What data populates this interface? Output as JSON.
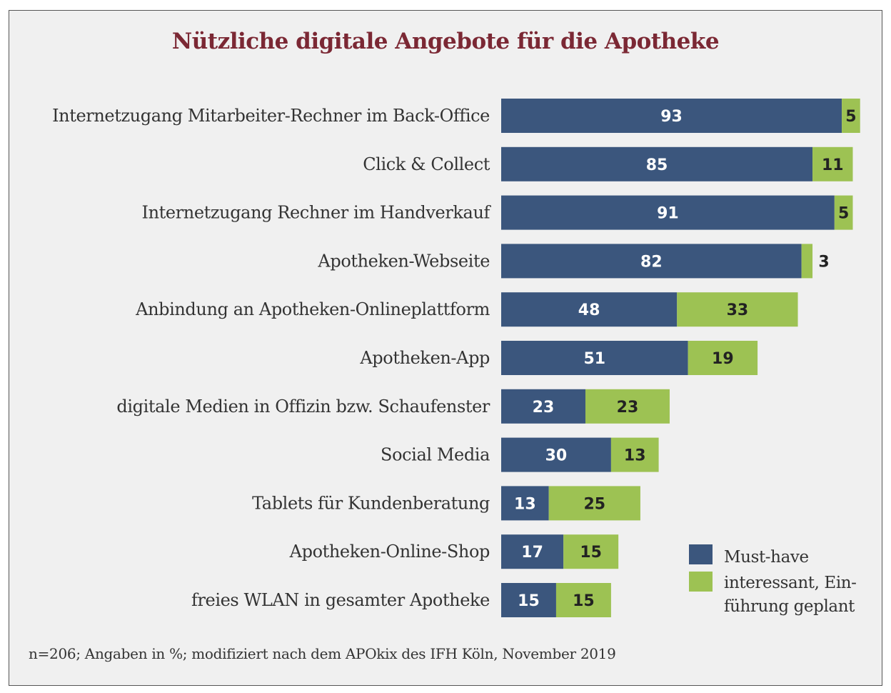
{
  "colors": {
    "title": "#7b2834",
    "must_have": "#3b567d",
    "interest": "#9dc253",
    "background": "#f0f0f0"
  },
  "footnote": "n=206; Angaben in %; modifiziert nach dem APOkix des IFH Köln, November 2019",
  "chart_data": {
    "type": "bar",
    "orientation": "horizontal",
    "stacked": true,
    "title": "Nützliche digitale Angebote für die Apotheke",
    "categories": [
      "Internetzugang Mitarbeiter-Rechner im Back-Office",
      "Click & Collect",
      "Internetzugang Rechner im Handverkauf",
      "Apotheken-Webseite",
      "Anbindung an Apotheken-Onlineplattform",
      "Apotheken-App",
      "digitale Medien in Offizin bzw. Schaufenster",
      "Social Media",
      "Tablets für Kundenberatung",
      "Apotheken-Online-Shop",
      "freies WLAN in gesamter Apotheke"
    ],
    "series": [
      {
        "name": "Must-have",
        "values": [
          93,
          85,
          91,
          82,
          48,
          51,
          23,
          30,
          13,
          17,
          15
        ]
      },
      {
        "name": "interessant, Einführung geplant",
        "values": [
          5,
          11,
          5,
          3,
          33,
          19,
          23,
          13,
          25,
          15,
          15
        ]
      }
    ],
    "legend": {
      "position": "bottom-right",
      "entries": [
        {
          "lines": [
            "Must-have"
          ]
        },
        {
          "lines": [
            "interessant, Ein-",
            "führung geplant"
          ]
        }
      ]
    },
    "grid": false,
    "xlim": [
      0,
      100
    ]
  }
}
